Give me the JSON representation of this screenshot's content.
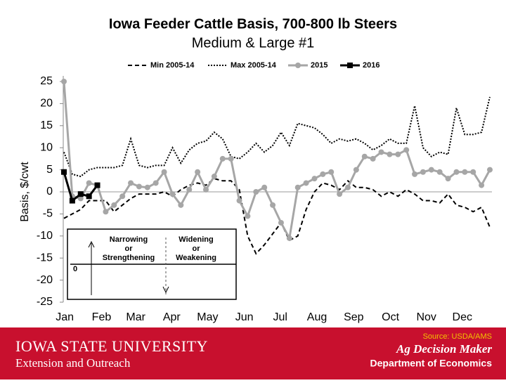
{
  "chart_data": {
    "type": "line",
    "title": "Iowa Feeder Cattle Basis, 700-800 lb Steers",
    "subtitle": "Medium & Large #1",
    "y_label": "Basis, $/cwt",
    "x": [
      1,
      2,
      3,
      4,
      5,
      6,
      7,
      8,
      9,
      10,
      11,
      12,
      13,
      14,
      15,
      16,
      17,
      18,
      19,
      20,
      21,
      22,
      23,
      24,
      25,
      26,
      27,
      28,
      29,
      30,
      31,
      32,
      33,
      34,
      35,
      36,
      37,
      38,
      39,
      40,
      41,
      42,
      43,
      44,
      45,
      46,
      47,
      48,
      49,
      50,
      51,
      52
    ],
    "xlim": [
      1,
      52
    ],
    "xticks": [
      {
        "value": 1.1,
        "label": "Jan"
      },
      {
        "value": 5.5,
        "label": "Feb"
      },
      {
        "value": 9.6,
        "label": "Mar"
      },
      {
        "value": 13.9,
        "label": "Apr"
      },
      {
        "value": 18.2,
        "label": "May"
      },
      {
        "value": 22.6,
        "label": "Jun"
      },
      {
        "value": 26.9,
        "label": "Jul"
      },
      {
        "value": 31.3,
        "label": "Aug"
      },
      {
        "value": 35.7,
        "label": "Sep"
      },
      {
        "value": 40.1,
        "label": "Oct"
      },
      {
        "value": 44.4,
        "label": "Nov"
      },
      {
        "value": 48.7,
        "label": "Dec"
      }
    ],
    "ylim": [
      -25,
      25
    ],
    "yticks": [
      -25,
      -20,
      -15,
      -10,
      -5,
      0,
      5,
      10,
      15,
      20,
      25
    ],
    "series": [
      {
        "name": "Min 2005-14",
        "color": "#000000",
        "style": "dashed",
        "marker": "none",
        "values": [
          -6,
          -5,
          -4,
          -2,
          -2,
          -2,
          -4.5,
          -3,
          -1.5,
          -0.5,
          -0.5,
          -0.5,
          0,
          -1,
          0.5,
          1.5,
          2,
          1.5,
          3,
          2.5,
          2.5,
          0.5,
          -10,
          -14,
          -12,
          -9.5,
          -7,
          -11,
          -10,
          -4,
          0,
          2,
          1.5,
          0.5,
          2.5,
          1,
          1,
          0.5,
          -1,
          0,
          -1,
          0.5,
          -0.5,
          -2,
          -2,
          -2.5,
          -0.5,
          -3,
          -3.5,
          -4.5,
          -3.5,
          -8
        ]
      },
      {
        "name": "Max 2005-14",
        "color": "#000000",
        "style": "dotted",
        "marker": "none",
        "values": [
          9,
          4,
          3.5,
          5,
          5.5,
          5.5,
          5.5,
          6,
          12,
          6,
          5.5,
          6,
          6,
          10,
          6.5,
          9.5,
          11,
          11.5,
          13.5,
          12,
          8,
          7.5,
          9,
          11,
          9,
          10.5,
          13.5,
          10.5,
          15.5,
          15,
          14.5,
          13,
          11,
          12,
          11.5,
          12,
          11,
          9.5,
          10.5,
          12,
          11,
          11,
          19.5,
          10,
          8,
          9,
          8.5,
          19,
          13,
          13,
          13.5,
          21.5
        ]
      },
      {
        "name": "2015",
        "color": "#a6a6a6",
        "style": "solid",
        "marker": "circle",
        "values": [
          25,
          -1,
          -1.5,
          2,
          1.5,
          -4.5,
          -3,
          -1,
          2,
          1.2,
          1,
          2,
          4.5,
          -0.5,
          -3,
          0.5,
          4.5,
          0.5,
          3.5,
          7.5,
          7.5,
          -2,
          -5.5,
          0,
          1,
          -3,
          -7,
          -10.5,
          1,
          2,
          3,
          4,
          4.5,
          -0.5,
          1,
          5,
          8,
          7.5,
          9,
          8.5,
          8.5,
          9.5,
          4,
          4.5,
          5,
          4.5,
          3,
          4.5,
          4.5,
          4.5,
          1.5,
          5
        ]
      },
      {
        "name": "2016",
        "color": "#000000",
        "style": "solid",
        "marker": "square",
        "values": [
          4.5,
          -2,
          -0.5,
          -1,
          1.5,
          null,
          null,
          null,
          null,
          null,
          null,
          null,
          null,
          null,
          null,
          null,
          null,
          null,
          null,
          null,
          null,
          null,
          null,
          null,
          null,
          null,
          null,
          null,
          null,
          null,
          null,
          null,
          null,
          null,
          null,
          null,
          null,
          null,
          null,
          null,
          null,
          null,
          null,
          null,
          null,
          null,
          null,
          null,
          null,
          null,
          null,
          null
        ]
      }
    ],
    "inset": {
      "left": [
        "Narrowing",
        "or",
        "Strengthening"
      ],
      "right": [
        "Widening",
        "or",
        "Weakening"
      ],
      "zero": "0"
    }
  },
  "footer": {
    "source": "Source: USDA/AMS",
    "university": "Iowa State University",
    "extension": "Extension and Outreach",
    "brand": "Ag Decision Maker",
    "department": "Department of Economics"
  }
}
